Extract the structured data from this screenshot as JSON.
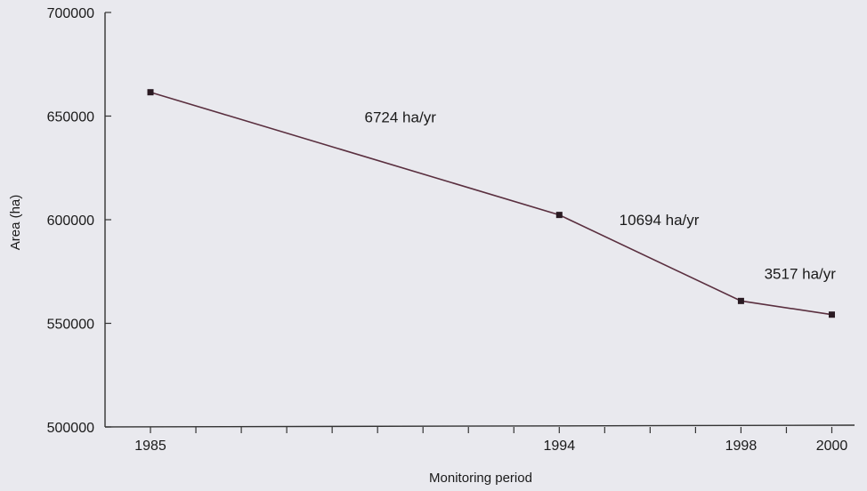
{
  "chart_data": {
    "type": "line",
    "title": "",
    "xlabel": "Monitoring period",
    "ylabel": "Area (ha)",
    "x": [
      1985,
      1994,
      1998,
      2000
    ],
    "x_tick_labels": [
      "1985",
      "1994",
      "1998",
      "2000"
    ],
    "series": [
      {
        "values": [
          661500,
          602300,
          560800,
          554200
        ]
      }
    ],
    "xlim": [
      1984,
      2000.5
    ],
    "ylim": [
      500000,
      700000
    ],
    "y_ticks": [
      500000,
      550000,
      600000,
      650000,
      700000
    ],
    "y_tick_labels": [
      "500000",
      "550000",
      "600000",
      "650000",
      "700000"
    ],
    "annotations": [
      {
        "text": "6724 ha/yr",
        "x": 1990.5,
        "y": 647000
      },
      {
        "text": "10694 ha/yr",
        "x": 1996.2,
        "y": 597500
      },
      {
        "text": "3517 ha/yr",
        "x": 1999.3,
        "y": 571500
      }
    ],
    "grid": false,
    "legend": "none",
    "colors": {
      "line": "#5a2f3f",
      "marker": "#2a1a22",
      "axis": "#333333"
    }
  }
}
